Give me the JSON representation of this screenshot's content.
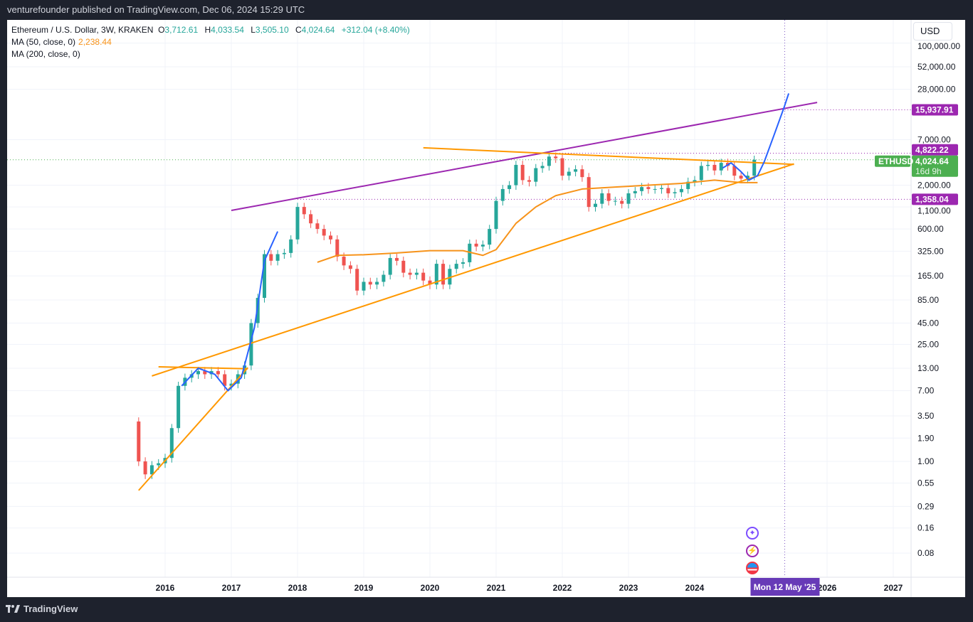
{
  "topbar": {
    "published": "venturefounder published on TradingView.com, Dec 06, 2024 15:29 UTC"
  },
  "legend": {
    "symbol": "Ethereum / U.S. Dollar, 3W, KRAKEN",
    "o_label": "O",
    "o": "3,712.61",
    "h_label": "H",
    "h": "4,033.54",
    "l_label": "L",
    "l": "3,505.10",
    "c_label": "C",
    "c": "4,024.64",
    "change": "+312.04 (+8.40%)",
    "ma50": "MA (50, close, 0)",
    "ma50_value": "2,238.44",
    "ma200": "MA (200, close, 0)"
  },
  "currency": "USD",
  "footer": {
    "brand": "TradingView"
  },
  "colors": {
    "up": "#26a69a",
    "down": "#ef5350",
    "ma50": "#f7931a",
    "trend": "#ff9800",
    "channel": "#9c27b0",
    "projection": "#2962ff",
    "price_label": "#4caf50",
    "marker": "#9c27b0",
    "date_marker": "#673ab7"
  },
  "chart_data": {
    "type": "candlestick",
    "title": "Ethereum / U.S. Dollar, 3W, KRAKEN",
    "yscale": "log",
    "ylim": [
      0.06,
      110000
    ],
    "xlim": [
      2013.7,
      2028.3
    ],
    "x_ticks": [
      "2016",
      "2017",
      "2018",
      "2019",
      "2020",
      "2021",
      "2022",
      "2023",
      "2024",
      "2026",
      "2027"
    ],
    "x_tick_values": [
      2016,
      2017,
      2018,
      2019,
      2020,
      2021,
      2022,
      2023,
      2024,
      2026,
      2027
    ],
    "y_ticks": [
      "100,000.00",
      "52,000.00",
      "28,000.00",
      "7,000.00",
      "2,000.00",
      "1,100.00",
      "600.00",
      "325.00",
      "165.00",
      "85.00",
      "45.00",
      "25.00",
      "13.00",
      "7.00",
      "3.50",
      "1.90",
      "1.00",
      "0.55",
      "0.29",
      "0.16",
      "0.08"
    ],
    "y_tick_values": [
      100000,
      52000,
      28000,
      7000,
      2000,
      1100,
      600,
      325,
      165,
      85,
      45,
      25,
      13,
      7,
      3.5,
      1.9,
      1.0,
      0.55,
      0.29,
      0.16,
      0.08
    ],
    "first_open": 3.0,
    "t": [
      2015.6,
      2015.7,
      2015.8,
      2015.9,
      2016.0,
      2016.1,
      2016.2,
      2016.3,
      2016.4,
      2016.5,
      2016.6,
      2016.7,
      2016.8,
      2016.9,
      2017.0,
      2017.1,
      2017.2,
      2017.3,
      2017.4,
      2017.5,
      2017.6,
      2017.7,
      2017.8,
      2017.9,
      2018.0,
      2018.1,
      2018.2,
      2018.3,
      2018.4,
      2018.5,
      2018.6,
      2018.7,
      2018.8,
      2018.9,
      2019.0,
      2019.1,
      2019.2,
      2019.3,
      2019.4,
      2019.5,
      2019.6,
      2019.7,
      2019.8,
      2019.9,
      2020.0,
      2020.1,
      2020.2,
      2020.3,
      2020.4,
      2020.5,
      2020.6,
      2020.7,
      2020.8,
      2020.9,
      2021.0,
      2021.1,
      2021.2,
      2021.3,
      2021.4,
      2021.5,
      2021.6,
      2021.7,
      2021.8,
      2021.9,
      2022.0,
      2022.1,
      2022.2,
      2022.3,
      2022.4,
      2022.5,
      2022.6,
      2022.7,
      2022.8,
      2022.9,
      2023.0,
      2023.1,
      2023.2,
      2023.3,
      2023.4,
      2023.5,
      2023.6,
      2023.7,
      2023.8,
      2023.9,
      2024.0,
      2024.1,
      2024.2,
      2024.3,
      2024.4,
      2024.5,
      2024.6,
      2024.7,
      2024.8,
      2024.9
    ],
    "close": [
      1.0,
      0.7,
      0.9,
      0.95,
      1.1,
      2.5,
      8,
      10,
      11,
      12,
      11,
      12,
      11,
      8,
      8.5,
      11,
      14,
      45,
      90,
      300,
      250,
      300,
      310,
      450,
      1100,
      900,
      700,
      600,
      500,
      450,
      280,
      220,
      200,
      110,
      140,
      130,
      140,
      170,
      270,
      250,
      180,
      170,
      180,
      145,
      130,
      230,
      130,
      200,
      230,
      240,
      400,
      370,
      390,
      600,
      1300,
      1800,
      2000,
      3500,
      2300,
      2200,
      3200,
      3400,
      4400,
      4200,
      2600,
      2900,
      3100,
      2500,
      1100,
      1200,
      1600,
      1300,
      1300,
      1200,
      1600,
      1700,
      1900,
      1800,
      1800,
      1850,
      1600,
      1650,
      1800,
      2200,
      2300,
      3400,
      3500,
      3000,
      3700,
      3400,
      2600,
      2400,
      2600,
      4024.64
    ],
    "ma50": {
      "t": [
        2018.3,
        2018.6,
        2019.0,
        2019.5,
        2020.0,
        2020.5,
        2020.8,
        2021.0,
        2021.3,
        2021.6,
        2021.9,
        2022.3,
        2022.8,
        2023.3,
        2023.8,
        2024.3,
        2024.7,
        2024.95
      ],
      "v": [
        240,
        290,
        295,
        310,
        330,
        330,
        290,
        340,
        700,
        1100,
        1500,
        1800,
        1900,
        2000,
        2100,
        2300,
        2150,
        2150
      ]
    },
    "drawings": {
      "channel_top": [
        [
          2017.0,
          1000
        ],
        [
          2025.85,
          19500
        ]
      ],
      "support_long": [
        [
          2015.8,
          10.5
        ],
        [
          2025.5,
          3600
        ]
      ],
      "support_early": [
        [
          2015.6,
          0.45
        ],
        [
          2017.25,
          13.2
        ]
      ],
      "resistance_2016": [
        [
          2015.9,
          13.5
        ],
        [
          2017.25,
          12.8
        ]
      ],
      "resistance_top": [
        [
          2019.9,
          5600
        ],
        [
          2025.5,
          3550
        ]
      ],
      "projection_2016": [
        [
          2016.25,
          8
        ],
        [
          2016.5,
          13
        ],
        [
          2016.75,
          11
        ],
        [
          2016.95,
          7
        ],
        [
          2017.15,
          10
        ],
        [
          2017.35,
          40
        ],
        [
          2017.5,
          250
        ],
        [
          2017.7,
          560
        ]
      ],
      "projection_2025": [
        [
          2024.42,
          3200
        ],
        [
          2024.55,
          3700
        ],
        [
          2024.7,
          2900
        ],
        [
          2024.82,
          2300
        ],
        [
          2024.95,
          2600
        ],
        [
          2025.05,
          3800
        ],
        [
          2025.2,
          8000
        ],
        [
          2025.35,
          17000
        ],
        [
          2025.42,
          25000
        ]
      ]
    },
    "levels": [
      {
        "label": "15,937.91",
        "value": 15937.91,
        "kind": "marker"
      },
      {
        "label": "4,822.22",
        "value": 4822.22,
        "kind": "marker"
      },
      {
        "label": "1,358.04",
        "value": 1358.04,
        "kind": "marker"
      }
    ],
    "last_price": {
      "symbol": "ETHUSD",
      "value": 4024.64,
      "label": "4,024.64",
      "countdown": "16d 9h"
    },
    "date_marker": {
      "label": "Mon 12 May '25",
      "t": 2025.36
    }
  }
}
